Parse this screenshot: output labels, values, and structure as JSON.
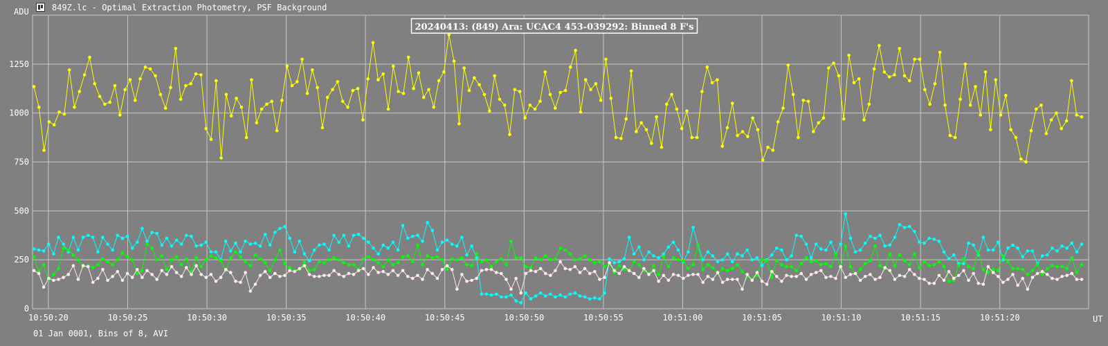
{
  "window": {
    "icon": "chart-icon",
    "title": "849Z.lc - Optimal Extraction Photometry, PSF Background"
  },
  "footer": {
    "date_info": "01 Jan 0001, Bins of 8, AVI",
    "x_unit": "UT"
  },
  "colors": {
    "background": "#808080",
    "grid": "#c8c8c8",
    "target": "#ffff00",
    "comp1": "#00ffff",
    "comp2": "#00ff00",
    "comp3": "#ffe8e8"
  },
  "chart_data": {
    "type": "line",
    "title": "20240413: (849) Ara: UCAC4 453-039292: Binned 8 F's",
    "ylabel": "ADU",
    "xlabel": "UT",
    "ylim": [
      0,
      1500
    ],
    "yticks": [
      0,
      250,
      500,
      750,
      1000,
      1250
    ],
    "xticks": [
      "10:50:20",
      "10:50:25",
      "10:50:30",
      "10:50:35",
      "10:50:40",
      "10:50:45",
      "10:50:50",
      "10:50:55",
      "10:51:00",
      "10:51:05",
      "10:51:10",
      "10:51:15",
      "10:51:20"
    ],
    "x_range_seconds": [
      19.0,
      85.6
    ],
    "grid": true,
    "series": [
      {
        "color": "#ffff00",
        "values": [
          1135,
          1030,
          810,
          955,
          940,
          1005,
          995,
          1220,
          1030,
          1110,
          1195,
          1285,
          1150,
          1085,
          1045,
          1055,
          1140,
          990,
          1120,
          1170,
          1065,
          1175,
          1235,
          1225,
          1190,
          1095,
          1025,
          1130,
          1330,
          1070,
          1140,
          1150,
          1200,
          1195,
          920,
          865,
          1165,
          770,
          1095,
          985,
          1075,
          1030,
          875,
          1170,
          950,
          1020,
          1045,
          1060,
          910,
          1065,
          1240,
          1140,
          1160,
          1275,
          1100,
          1220,
          1130,
          925,
          1080,
          1120,
          1160,
          1060,
          1030,
          1115,
          1125,
          965,
          1175,
          1360,
          1170,
          1200,
          1020,
          1240,
          1110,
          1100,
          1285,
          1125,
          1205,
          1080,
          1120,
          1030,
          1165,
          1210,
          1400,
          1265,
          945,
          1230,
          1115,
          1180,
          1145,
          1095,
          1010,
          1190,
          1070,
          1040,
          890,
          1120,
          1110,
          975,
          1040,
          1020,
          1060,
          1210,
          1095,
          1025,
          1105,
          1115,
          1235,
          1320,
          1005,
          1170,
          1120,
          1150,
          1065,
          1275,
          1075,
          875,
          870,
          970,
          1215,
          905,
          950,
          915,
          845,
          980,
          825,
          1045,
          1095,
          1020,
          920,
          1010,
          875,
          875,
          1110,
          1235,
          1155,
          1170,
          830,
          925,
          1050,
          885,
          905,
          880,
          975,
          915,
          760,
          825,
          810,
          955,
          1025,
          1245,
          1095,
          875,
          1065,
          1060,
          905,
          950,
          975,
          1230,
          1255,
          1190,
          970,
          1295,
          1155,
          1175,
          965,
          1045,
          1225,
          1345,
          1210,
          1185,
          1195,
          1330,
          1190,
          1165,
          1275,
          1275,
          1120,
          1045,
          1150,
          1310,
          1040,
          885,
          875,
          1070,
          1250,
          1040,
          1135,
          990,
          1210,
          915,
          1170,
          990,
          1090,
          915,
          875,
          765,
          750,
          910,
          1020,
          1040,
          895,
          965,
          1000,
          920,
          960,
          1165,
          990,
          980
        ]
      },
      {
        "color": "#00ffff",
        "values": [
          305,
          300,
          295,
          330,
          280,
          365,
          330,
          290,
          365,
          300,
          365,
          375,
          365,
          290,
          365,
          330,
          300,
          375,
          360,
          370,
          310,
          340,
          410,
          345,
          390,
          385,
          325,
          360,
          320,
          350,
          330,
          375,
          370,
          320,
          325,
          340,
          290,
          290,
          250,
          345,
          295,
          335,
          290,
          345,
          330,
          335,
          320,
          380,
          325,
          390,
          410,
          420,
          360,
          290,
          345,
          280,
          245,
          300,
          325,
          330,
          300,
          375,
          340,
          375,
          320,
          375,
          380,
          360,
          340,
          310,
          280,
          325,
          310,
          340,
          300,
          425,
          360,
          370,
          375,
          345,
          440,
          400,
          300,
          340,
          350,
          330,
          320,
          365,
          275,
          320,
          260,
          75,
          75,
          70,
          75,
          60,
          60,
          70,
          40,
          30,
          80,
          50,
          65,
          80,
          65,
          75,
          60,
          70,
          60,
          75,
          80,
          65,
          60,
          50,
          55,
          50,
          80,
          255,
          235,
          240,
          255,
          365,
          280,
          315,
          250,
          290,
          270,
          260,
          280,
          315,
          340,
          300,
          240,
          290,
          415,
          325,
          250,
          290,
          270,
          240,
          250,
          280,
          240,
          280,
          270,
          300,
          250,
          260,
          220,
          250,
          275,
          310,
          300,
          250,
          270,
          375,
          370,
          330,
          260,
          330,
          305,
          300,
          340,
          280,
          330,
          485,
          360,
          290,
          300,
          335,
          370,
          360,
          375,
          320,
          325,
          365,
          430,
          415,
          420,
          395,
          340,
          335,
          360,
          355,
          345,
          290,
          255,
          275,
          230,
          230,
          335,
          325,
          275,
          365,
          300,
          300,
          340,
          250,
          310,
          325,
          310,
          265,
          295,
          295,
          230,
          270,
          275,
          310,
          295,
          320,
          310,
          335,
          290,
          330
        ]
      },
      {
        "color": "#00ff00",
        "values": [
          265,
          190,
          225,
          145,
          175,
          205,
          310,
          300,
          275,
          250,
          215,
          220,
          210,
          225,
          255,
          240,
          225,
          250,
          285,
          265,
          250,
          180,
          195,
          330,
          310,
          250,
          270,
          200,
          250,
          265,
          225,
          255,
          190,
          260,
          215,
          250,
          270,
          260,
          245,
          195,
          260,
          290,
          265,
          240,
          220,
          275,
          255,
          235,
          195,
          250,
          300,
          230,
          210,
          195,
          200,
          240,
          195,
          200,
          240,
          235,
          250,
          260,
          250,
          235,
          225,
          225,
          200,
          255,
          265,
          250,
          235,
          215,
          250,
          225,
          235,
          265,
          270,
          240,
          325,
          225,
          270,
          260,
          265,
          250,
          200,
          255,
          250,
          260,
          225,
          220,
          280,
          240,
          250,
          215,
          240,
          255,
          225,
          345,
          260,
          260,
          215,
          210,
          260,
          250,
          270,
          250,
          255,
          310,
          300,
          280,
          250,
          255,
          270,
          250,
          235,
          240,
          215,
          230,
          185,
          220,
          200,
          195,
          240,
          225,
          195,
          180,
          220,
          175,
          265,
          215,
          260,
          250,
          245,
          205,
          225,
          325,
          200,
          225,
          210,
          180,
          205,
          195,
          205,
          225,
          190,
          165,
          150,
          170,
          250,
          245,
          160,
          245,
          225,
          215,
          215,
          195,
          230,
          260,
          240,
          245,
          225,
          230,
          215,
          280,
          210,
          320,
          215,
          180,
          200,
          230,
          245,
          320,
          220,
          205,
          280,
          220,
          275,
          245,
          225,
          280,
          210,
          240,
          220,
          225,
          240,
          215,
          140,
          145,
          220,
          255,
          215,
          205,
          290,
          200,
          185,
          200,
          195,
          270,
          240,
          205,
          205,
          200,
          175,
          195,
          225,
          175,
          205,
          220,
          215,
          215,
          205,
          260,
          185,
          225
        ]
      },
      {
        "color": "#ffe8e8",
        "values": [
          195,
          180,
          110,
          155,
          145,
          150,
          160,
          175,
          220,
          150,
          220,
          215,
          135,
          155,
          200,
          145,
          165,
          190,
          145,
          180,
          160,
          200,
          160,
          195,
          175,
          150,
          195,
          175,
          215,
          185,
          165,
          210,
          175,
          220,
          175,
          160,
          175,
          140,
          160,
          200,
          185,
          140,
          135,
          185,
          90,
          125,
          170,
          190,
          160,
          180,
          165,
          170,
          195,
          190,
          205,
          220,
          175,
          165,
          165,
          170,
          170,
          195,
          175,
          165,
          180,
          175,
          195,
          205,
          175,
          210,
          185,
          190,
          175,
          195,
          170,
          195,
          165,
          155,
          170,
          150,
          200,
          180,
          155,
          200,
          220,
          200,
          100,
          175,
          140,
          145,
          155,
          195,
          200,
          200,
          185,
          180,
          150,
          100,
          155,
          80,
          180,
          195,
          190,
          205,
          180,
          170,
          195,
          240,
          205,
          200,
          215,
          185,
          205,
          180,
          190,
          150,
          160,
          235,
          195,
          180,
          215,
          195,
          180,
          160,
          205,
          175,
          195,
          140,
          170,
          145,
          175,
          170,
          155,
          170,
          175,
          175,
          135,
          165,
          150,
          185,
          135,
          150,
          150,
          150,
          100,
          175,
          145,
          185,
          140,
          125,
          190,
          165,
          140,
          170,
          165,
          165,
          180,
          150,
          175,
          185,
          195,
          160,
          165,
          155,
          215,
          160,
          175,
          180,
          145,
          165,
          175,
          150,
          160,
          210,
          195,
          150,
          170,
          165,
          200,
          175,
          155,
          150,
          130,
          130,
          170,
          145,
          190,
          155,
          170,
          195,
          145,
          180,
          130,
          125,
          215,
          185,
          165,
          135,
          150,
          175,
          120,
          155,
          100,
          160,
          180,
          190,
          175,
          155,
          150,
          165,
          170,
          180,
          150,
          150
        ]
      }
    ]
  }
}
